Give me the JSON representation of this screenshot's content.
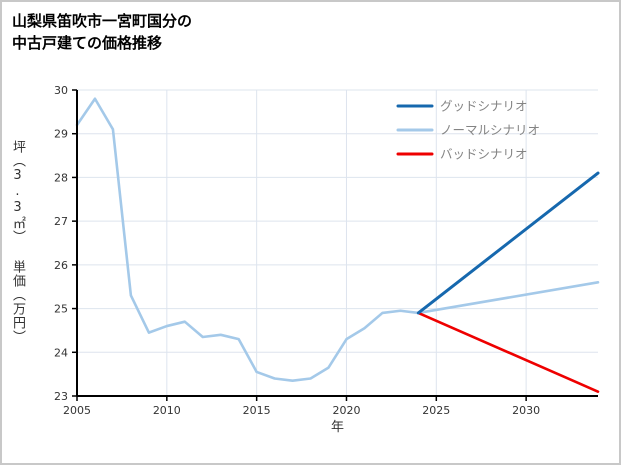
{
  "chart_data": {
    "type": "line",
    "title": "山梨県笛吹市一宮町国分の\n中古戸建ての価格推移",
    "xlabel": "年",
    "ylabel": "坪（3.3㎡） 単価（万円）",
    "xlim": [
      2005,
      2034
    ],
    "ylim": [
      23,
      30
    ],
    "xticks": [
      2005,
      2010,
      2015,
      2020,
      2025,
      2030
    ],
    "yticks": [
      23,
      24,
      25,
      26,
      27,
      28,
      29,
      30
    ],
    "grid": true,
    "legend_position": "upper right",
    "colors": {
      "axis": "#000000",
      "grid": "#dde4ee",
      "tick_label": "#333333",
      "legend_text": "#848484"
    },
    "series": [
      {
        "key": "good-scenario",
        "name": "グッドシナリオ",
        "color": "#1668ae",
        "width": 3,
        "x": [
          2024,
          2034
        ],
        "y": [
          24.9,
          28.1
        ]
      },
      {
        "key": "normal-scenario",
        "name": "ノーマルシナリオ",
        "color": "#a4c9e9",
        "width": 2.6,
        "x": [
          2005,
          2006,
          2007,
          2008,
          2009,
          2010,
          2011,
          2012,
          2013,
          2014,
          2015,
          2016,
          2017,
          2018,
          2019,
          2020,
          2021,
          2022,
          2023,
          2024,
          2034
        ],
        "y": [
          29.2,
          29.8,
          29.1,
          25.3,
          24.45,
          24.6,
          24.7,
          24.35,
          24.4,
          24.3,
          23.55,
          23.4,
          23.35,
          23.4,
          23.65,
          24.3,
          24.55,
          24.9,
          24.95,
          24.9,
          25.6
        ]
      },
      {
        "key": "bad-scenario",
        "name": "バッドシナリオ",
        "color": "#ee0000",
        "width": 2.6,
        "x": [
          2024,
          2034
        ],
        "y": [
          24.9,
          23.1
        ]
      }
    ]
  }
}
